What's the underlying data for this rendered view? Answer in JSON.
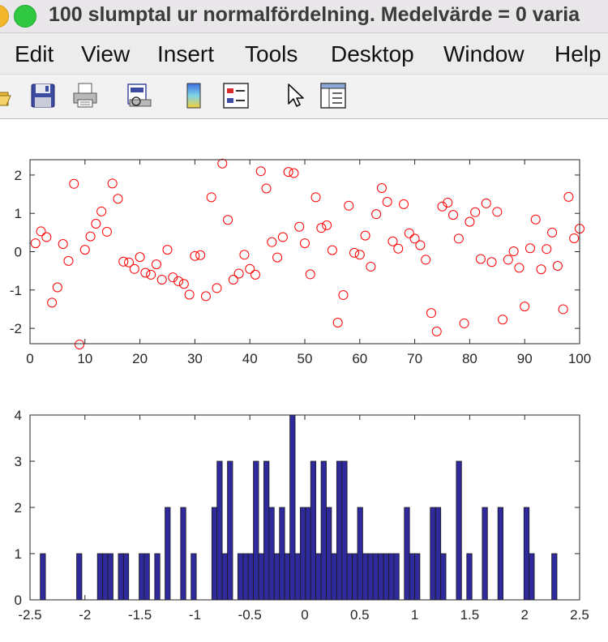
{
  "window": {
    "title": "100 slumptal ur normalfördelning. Medelvärde = 0 varia"
  },
  "menu": {
    "items": [
      "Edit",
      "View",
      "Insert",
      "Tools",
      "Desktop",
      "Window",
      "Help"
    ]
  },
  "toolbar": {
    "icons": [
      "open-file-icon",
      "save-icon",
      "print-icon",
      "print-preview-icon",
      "colorbar-icon",
      "legend-icon",
      "pointer-icon",
      "property-inspector-icon"
    ]
  },
  "colors": {
    "scatter_marker": "#ff0000",
    "histogram_fill": "#2f2a9c",
    "histogram_edge": "#1a1a1a",
    "axes": "#262626"
  },
  "chart_data": [
    {
      "type": "scatter",
      "marker": "circle-open",
      "x": [
        1,
        2,
        3,
        4,
        5,
        6,
        7,
        8,
        9,
        10,
        11,
        12,
        13,
        14,
        15,
        16,
        17,
        18,
        19,
        20,
        21,
        22,
        23,
        24,
        25,
        26,
        27,
        28,
        29,
        30,
        31,
        32,
        33,
        34,
        35,
        36,
        37,
        38,
        39,
        40,
        41,
        42,
        43,
        44,
        45,
        46,
        47,
        48,
        49,
        50,
        51,
        52,
        53,
        54,
        55,
        56,
        57,
        58,
        59,
        60,
        61,
        62,
        63,
        64,
        65,
        66,
        67,
        68,
        69,
        70,
        71,
        72,
        73,
        74,
        75,
        76,
        77,
        78,
        79,
        80,
        81,
        82,
        83,
        84,
        85,
        86,
        87,
        88,
        89,
        90,
        91,
        92,
        93,
        94,
        95,
        96,
        97,
        98,
        99,
        100
      ],
      "y": [
        0.22,
        0.53,
        0.38,
        -1.33,
        -0.93,
        0.2,
        -0.24,
        1.77,
        -2.42,
        0.05,
        0.4,
        0.73,
        1.05,
        0.52,
        1.78,
        1.38,
        -0.26,
        -0.28,
        -0.45,
        -0.14,
        -0.55,
        -0.6,
        -0.33,
        -0.73,
        0.05,
        -0.67,
        -0.77,
        -0.84,
        -1.12,
        -0.11,
        -0.09,
        -1.16,
        1.42,
        -0.95,
        2.3,
        0.83,
        -0.73,
        -0.57,
        -0.08,
        -0.45,
        -0.6,
        2.1,
        1.65,
        0.25,
        -0.15,
        0.38,
        2.08,
        2.05,
        0.65,
        0.22,
        -0.59,
        1.42,
        0.62,
        0.69,
        0.04,
        -1.85,
        -1.13,
        1.2,
        -0.03,
        -0.08,
        0.42,
        -0.39,
        0.98,
        1.66,
        1.3,
        0.27,
        0.08,
        1.24,
        0.48,
        0.34,
        0.17,
        -0.21,
        -1.6,
        -2.08,
        1.18,
        1.28,
        0.96,
        0.34,
        -1.87,
        0.78,
        1.03,
        -0.19,
        1.26,
        -0.27,
        1.04,
        -1.77,
        -0.21,
        0.01,
        -0.42,
        -1.43,
        0.09,
        0.84,
        -0.46,
        0.07,
        0.5,
        -0.37,
        -1.5,
        1.43,
        0.35,
        0.6
      ],
      "xlim": [
        0,
        100
      ],
      "ylim": [
        -2.4,
        2.4
      ],
      "xticks": [
        0,
        10,
        20,
        30,
        40,
        50,
        60,
        70,
        80,
        90,
        100
      ],
      "yticks": [
        -2,
        -1,
        0,
        1,
        2
      ]
    },
    {
      "type": "bar",
      "subtype": "histogram",
      "bin_width": 0.0473,
      "bin_centers": [
        -2.383,
        -2.052,
        -1.863,
        -1.815,
        -1.768,
        -1.673,
        -1.626,
        -1.484,
        -1.437,
        -1.342,
        -1.248,
        -1.106,
        -1.011,
        -0.822,
        -0.775,
        -0.728,
        -0.68,
        -0.586,
        -0.538,
        -0.491,
        -0.444,
        -0.396,
        -0.349,
        -0.302,
        -0.254,
        -0.207,
        -0.16,
        -0.112,
        -0.065,
        -0.018,
        0.03,
        0.077,
        0.124,
        0.172,
        0.219,
        0.266,
        0.314,
        0.361,
        0.408,
        0.456,
        0.503,
        0.55,
        0.598,
        0.645,
        0.692,
        0.74,
        0.787,
        0.834,
        0.929,
        0.976,
        1.023,
        1.165,
        1.213,
        1.26,
        1.402,
        1.497,
        1.638,
        1.78,
        2.017,
        2.064,
        2.27
      ],
      "counts": [
        1,
        1,
        1,
        1,
        1,
        1,
        1,
        1,
        1,
        1,
        2,
        2,
        1,
        2,
        3,
        1,
        3,
        1,
        1,
        1,
        3,
        1,
        3,
        2,
        1,
        2,
        1,
        4,
        1,
        2,
        2,
        3,
        1,
        3,
        2,
        1,
        3,
        3,
        1,
        1,
        2,
        1,
        1,
        1,
        1,
        1,
        1,
        1,
        2,
        1,
        1,
        2,
        2,
        1,
        3,
        1,
        2,
        2,
        2,
        1,
        1
      ],
      "xlim": [
        -2.5,
        2.5
      ],
      "ylim": [
        0,
        4
      ],
      "xticks": [
        -2.5,
        -2,
        -1.5,
        -1,
        -0.5,
        0,
        0.5,
        1,
        1.5,
        2,
        2.5
      ],
      "xtick_labels": [
        "-2.5",
        "-2",
        "-1.5",
        "-1",
        "-0.5",
        "0",
        "0.5",
        "1",
        "1.5",
        "2",
        "2.5"
      ],
      "yticks": [
        0,
        1,
        2,
        3,
        4
      ]
    }
  ]
}
